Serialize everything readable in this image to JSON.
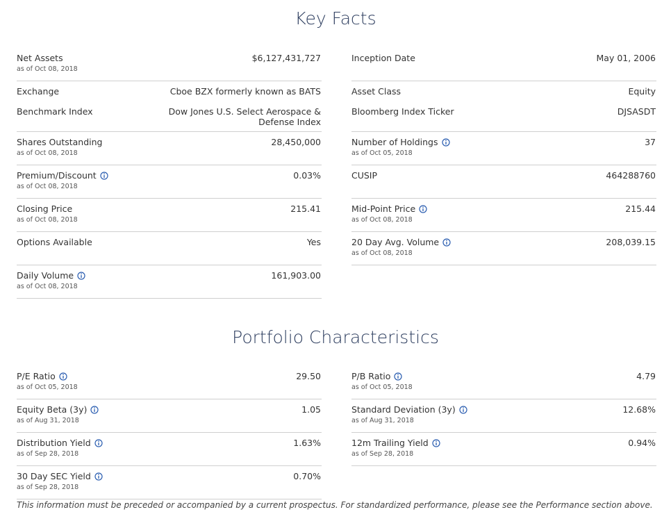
{
  "key_facts": {
    "title": "Key Facts",
    "left": [
      {
        "label": "Net Assets",
        "date": "as of Oct 08, 2018",
        "value": "$6,127,431,727"
      },
      {
        "label": "Exchange",
        "value": "Cboe BZX formerly known as BATS"
      },
      {
        "label": "Benchmark Index",
        "value": "Dow Jones U.S. Select Aerospace & Defense Index"
      },
      {
        "label": "Shares Outstanding",
        "date": "as of Oct 08, 2018",
        "value": "28,450,000"
      },
      {
        "label": "Premium/Discount",
        "info": true,
        "date": "as of Oct 08, 2018",
        "value": "0.03%"
      },
      {
        "label": "Closing Price",
        "date": "as of Oct 08, 2018",
        "value": "215.41"
      },
      {
        "label": "Options Available",
        "value": "Yes"
      },
      {
        "label": "Daily Volume",
        "info": true,
        "date": "as of Oct 08, 2018",
        "value": "161,903.00"
      }
    ],
    "right": [
      {
        "label": "Inception Date",
        "value": "May 01, 2006"
      },
      {
        "label": "Asset Class",
        "value": "Equity"
      },
      {
        "label": "Bloomberg Index Ticker",
        "value": "DJSASDT"
      },
      {
        "label": "Number of Holdings",
        "info": true,
        "date": "as of Oct 05, 2018",
        "value": "37"
      },
      {
        "label": "CUSIP",
        "value": "464288760"
      },
      {
        "label": "Mid-Point Price",
        "info": true,
        "date": "as of Oct 08, 2018",
        "value": "215.44"
      },
      {
        "label": "20 Day Avg. Volume",
        "info": true,
        "date": "as of Oct 08, 2018",
        "value": "208,039.15"
      }
    ]
  },
  "portfolio": {
    "title": "Portfolio Characteristics",
    "left": [
      {
        "label": "P/E Ratio",
        "info": true,
        "date": "as of Oct 05, 2018",
        "value": "29.50"
      },
      {
        "label": "Equity Beta (3y)",
        "info": true,
        "date": "as of Aug 31, 2018",
        "value": "1.05"
      },
      {
        "label": "Distribution Yield",
        "info": true,
        "date": "as of Sep 28, 2018",
        "value": "1.63%"
      },
      {
        "label": "30 Day SEC Yield",
        "info": true,
        "date": "as of Sep 28, 2018",
        "value": "0.70%"
      }
    ],
    "right": [
      {
        "label": "P/B Ratio",
        "info": true,
        "date": "as of Oct 05, 2018",
        "value": "4.79"
      },
      {
        "label": "Standard Deviation (3y)",
        "info": true,
        "date": "as of Aug 31, 2018",
        "value": "12.68%"
      },
      {
        "label": "12m Trailing Yield",
        "info": true,
        "date": "as of Sep 28, 2018",
        "value": "0.94%"
      }
    ]
  },
  "footer": "This information must be preceded or accompanied by a current prospectus. For standardized performance, please see the Performance section above."
}
